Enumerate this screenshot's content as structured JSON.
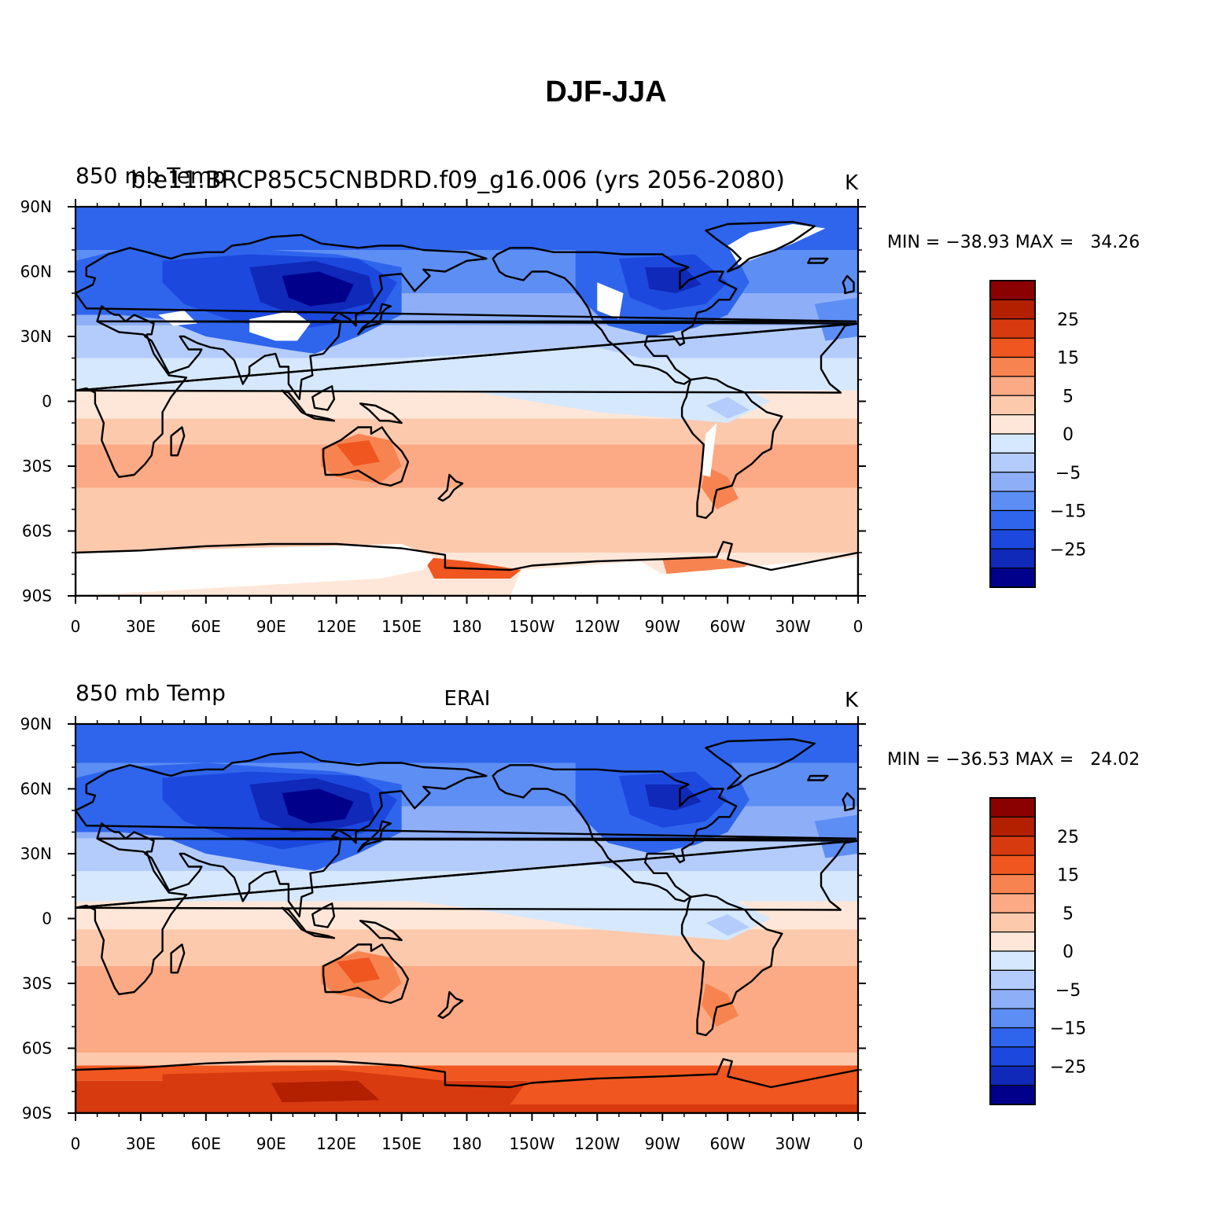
{
  "title": "DJF-JJA",
  "panels": [
    {
      "left_string": "850 mb Temp",
      "center_string": "b.e11.BRCP85C5CNBDRD.f09_g16.006 (yrs 2056-2080)",
      "right_string": "K",
      "stats_text": "MIN = −38.93 MAX =   34.26",
      "has_missing_land": true
    },
    {
      "left_string": "850 mb Temp",
      "center_string": "ERAI",
      "right_string": "K",
      "stats_text": "MIN = −36.53 MAX =   24.02",
      "has_missing_land": false
    }
  ],
  "lat_labels": [
    "90N",
    "60N",
    "30N",
    "0",
    "30S",
    "60S",
    "90S"
  ],
  "lon_labels": [
    "0",
    "30E",
    "60E",
    "90E",
    "120E",
    "150E",
    "180",
    "150W",
    "120W",
    "90W",
    "60W",
    "30W",
    "0"
  ],
  "colorbar": {
    "labels": [
      "25",
      "15",
      "5",
      "0",
      "−5",
      "−15",
      "−25"
    ],
    "colors_top_to_bottom": [
      "#8b0000",
      "#b22000",
      "#d83a10",
      "#f0561f",
      "#f78450",
      "#fbaa85",
      "#fcc9ad",
      "#fee7d8",
      "#d6e8fd",
      "#b4ccfb",
      "#8eaef8",
      "#5d8ef4",
      "#2f65ec",
      "#1c48de",
      "#1029b8",
      "#00008b"
    ]
  },
  "legend_color_for_missing": "#ffffff"
}
